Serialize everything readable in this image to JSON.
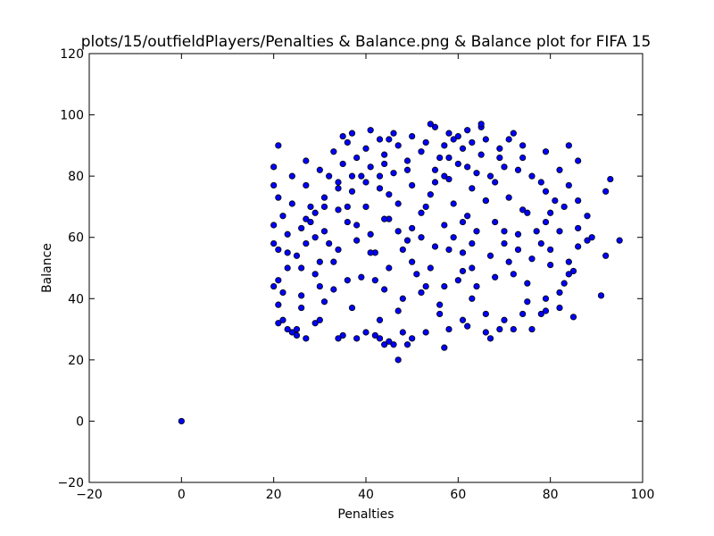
{
  "chart_data": {
    "type": "scatter",
    "title": "plots/15/outfieldPlayers/Penalties & Balance.png & Balance plot for FIFA 15",
    "xlabel": "Penalties",
    "ylabel": "Balance",
    "xlim": [
      -20,
      100
    ],
    "ylim": [
      -20,
      120
    ],
    "xticks": [
      -20,
      0,
      20,
      40,
      60,
      80,
      100
    ],
    "yticks": [
      -20,
      0,
      20,
      40,
      60,
      80,
      100,
      120
    ],
    "grid": false,
    "legend": "none",
    "marker_color": "#0000ff",
    "marker_edge_color": "#000000",
    "points": [
      [
        0,
        0
      ],
      [
        47,
        20
      ],
      [
        57,
        24
      ],
      [
        44,
        25
      ],
      [
        46,
        25
      ],
      [
        49,
        25
      ],
      [
        45,
        26
      ],
      [
        43,
        27
      ],
      [
        50,
        27
      ],
      [
        38,
        27
      ],
      [
        27,
        27
      ],
      [
        67,
        27
      ],
      [
        34,
        27
      ],
      [
        25,
        28
      ],
      [
        35,
        28
      ],
      [
        42,
        28
      ],
      [
        40,
        29
      ],
      [
        53,
        29
      ],
      [
        66,
        29
      ],
      [
        48,
        29
      ],
      [
        24,
        29
      ],
      [
        25,
        30
      ],
      [
        23,
        30
      ],
      [
        58,
        30
      ],
      [
        72,
        30
      ],
      [
        69,
        30
      ],
      [
        76,
        30
      ],
      [
        62,
        31
      ],
      [
        29,
        32
      ],
      [
        21,
        32
      ],
      [
        22,
        33
      ],
      [
        30,
        33
      ],
      [
        43,
        33
      ],
      [
        61,
        33
      ],
      [
        70,
        33
      ],
      [
        85,
        34
      ],
      [
        78,
        35
      ],
      [
        74,
        35
      ],
      [
        66,
        35
      ],
      [
        56,
        35
      ],
      [
        79,
        36
      ],
      [
        47,
        36
      ],
      [
        37,
        37
      ],
      [
        82,
        37
      ],
      [
        26,
        37
      ],
      [
        21,
        38
      ],
      [
        31,
        39
      ],
      [
        75,
        39
      ],
      [
        79,
        40
      ],
      [
        63,
        40
      ],
      [
        91,
        41
      ],
      [
        26,
        41
      ],
      [
        22,
        42
      ],
      [
        82,
        42
      ],
      [
        33,
        43
      ],
      [
        44,
        43
      ],
      [
        20,
        44
      ],
      [
        53,
        44
      ],
      [
        75,
        45
      ],
      [
        83,
        45
      ],
      [
        21,
        46
      ],
      [
        36,
        46
      ],
      [
        68,
        47
      ],
      [
        29,
        48
      ],
      [
        84,
        48
      ],
      [
        85,
        49
      ],
      [
        61,
        49
      ],
      [
        23,
        50
      ],
      [
        45,
        50
      ],
      [
        80,
        51
      ],
      [
        30,
        52
      ],
      [
        84,
        52
      ],
      [
        76,
        53
      ],
      [
        25,
        54
      ],
      [
        92,
        54
      ],
      [
        42,
        55
      ],
      [
        61,
        55
      ],
      [
        21,
        56
      ],
      [
        34,
        56
      ],
      [
        80,
        56
      ],
      [
        55,
        57
      ],
      [
        86,
        57
      ],
      [
        20,
        58
      ],
      [
        27,
        58
      ],
      [
        70,
        58
      ],
      [
        38,
        59
      ],
      [
        95,
        59
      ],
      [
        49,
        59
      ],
      [
        88,
        59
      ],
      [
        59,
        60
      ],
      [
        89,
        60
      ],
      [
        23,
        61
      ],
      [
        41,
        61
      ],
      [
        73,
        61
      ],
      [
        31,
        62
      ],
      [
        64,
        62
      ],
      [
        82,
        62
      ],
      [
        50,
        63
      ],
      [
        26,
        63
      ],
      [
        86,
        63
      ],
      [
        20,
        64
      ],
      [
        57,
        64
      ],
      [
        36,
        65
      ],
      [
        68,
        65
      ],
      [
        79,
        65
      ],
      [
        45,
        66
      ],
      [
        22,
        67
      ],
      [
        88,
        67
      ],
      [
        62,
        67
      ],
      [
        29,
        68
      ],
      [
        52,
        68
      ],
      [
        74,
        69
      ],
      [
        34,
        69
      ],
      [
        40,
        70
      ],
      [
        83,
        70
      ],
      [
        24,
        71
      ],
      [
        59,
        71
      ],
      [
        47,
        71
      ],
      [
        66,
        72
      ],
      [
        86,
        72
      ],
      [
        21,
        73
      ],
      [
        31,
        73
      ],
      [
        71,
        73
      ],
      [
        54,
        74
      ],
      [
        37,
        75
      ],
      [
        79,
        75
      ],
      [
        92,
        75
      ],
      [
        43,
        76
      ],
      [
        63,
        76
      ],
      [
        20,
        77
      ],
      [
        27,
        77
      ],
      [
        50,
        77
      ],
      [
        84,
        77
      ],
      [
        68,
        78
      ],
      [
        34,
        78
      ],
      [
        58,
        79
      ],
      [
        93,
        79
      ],
      [
        24,
        80
      ],
      [
        39,
        80
      ],
      [
        76,
        80
      ],
      [
        46,
        81
      ],
      [
        64,
        81
      ],
      [
        30,
        82
      ],
      [
        55,
        82
      ],
      [
        82,
        82
      ],
      [
        20,
        83
      ],
      [
        41,
        83
      ],
      [
        70,
        83
      ],
      [
        35,
        84
      ],
      [
        60,
        84
      ],
      [
        49,
        85
      ],
      [
        86,
        85
      ],
      [
        27,
        85
      ],
      [
        74,
        86
      ],
      [
        38,
        86
      ],
      [
        56,
        86
      ],
      [
        44,
        87
      ],
      [
        65,
        87
      ],
      [
        52,
        88
      ],
      [
        79,
        88
      ],
      [
        33,
        88
      ],
      [
        61,
        89
      ],
      [
        69,
        89
      ],
      [
        40,
        89
      ],
      [
        84,
        90
      ],
      [
        21,
        90
      ],
      [
        47,
        90
      ],
      [
        57,
        90
      ],
      [
        74,
        90
      ],
      [
        36,
        91
      ],
      [
        63,
        91
      ],
      [
        53,
        91
      ],
      [
        43,
        92
      ],
      [
        66,
        92
      ],
      [
        50,
        93
      ],
      [
        60,
        93
      ],
      [
        37,
        94
      ],
      [
        72,
        94
      ],
      [
        46,
        94
      ],
      [
        62,
        95
      ],
      [
        41,
        95
      ],
      [
        55,
        96
      ],
      [
        65,
        96
      ],
      [
        54,
        97
      ],
      [
        65,
        97
      ],
      [
        45,
        92
      ],
      [
        59,
        92
      ],
      [
        71,
        92
      ],
      [
        35,
        93
      ],
      [
        58,
        94
      ],
      [
        28,
        65
      ],
      [
        32,
        58
      ],
      [
        39,
        47
      ],
      [
        48,
        40
      ],
      [
        56,
        38
      ],
      [
        64,
        44
      ],
      [
        72,
        48
      ],
      [
        78,
        58
      ],
      [
        75,
        68
      ],
      [
        67,
        80
      ],
      [
        58,
        86
      ],
      [
        44,
        84
      ],
      [
        34,
        76
      ],
      [
        29,
        60
      ],
      [
        33,
        52
      ],
      [
        42,
        46
      ],
      [
        52,
        42
      ],
      [
        63,
        50
      ],
      [
        70,
        62
      ],
      [
        66,
        72
      ],
      [
        55,
        78
      ],
      [
        45,
        74
      ],
      [
        38,
        64
      ],
      [
        41,
        55
      ],
      [
        50,
        52
      ],
      [
        58,
        56
      ],
      [
        61,
        65
      ],
      [
        53,
        70
      ],
      [
        47,
        62
      ],
      [
        52,
        60
      ],
      [
        30,
        44
      ],
      [
        26,
        50
      ],
      [
        23,
        55
      ],
      [
        28,
        70
      ],
      [
        32,
        80
      ],
      [
        36,
        70
      ],
      [
        40,
        78
      ],
      [
        44,
        66
      ],
      [
        48,
        56
      ],
      [
        51,
        48
      ],
      [
        54,
        50
      ],
      [
        57,
        44
      ],
      [
        60,
        46
      ],
      [
        63,
        58
      ],
      [
        67,
        54
      ],
      [
        71,
        52
      ],
      [
        73,
        56
      ],
      [
        77,
        62
      ],
      [
        80,
        68
      ],
      [
        81,
        72
      ],
      [
        78,
        78
      ],
      [
        73,
        82
      ],
      [
        69,
        86
      ],
      [
        62,
        83
      ],
      [
        57,
        80
      ],
      [
        49,
        82
      ],
      [
        43,
        80
      ],
      [
        37,
        80
      ],
      [
        31,
        70
      ],
      [
        27,
        66
      ]
    ]
  }
}
